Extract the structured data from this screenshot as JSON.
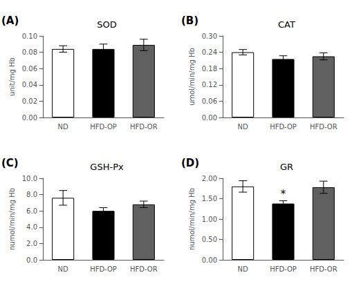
{
  "chart_data": [
    {
      "type": "bar",
      "panel_label": "(A)",
      "title": "SOD",
      "ylabel": "unit/mg Hb",
      "categories": [
        "ND",
        "HFD-OP",
        "HFD-OR"
      ],
      "values": [
        0.084,
        0.084,
        0.089
      ],
      "errors": [
        0.004,
        0.006,
        0.007
      ],
      "colors": [
        "#ffffff",
        "#000000",
        "#606060"
      ],
      "ylim": [
        0,
        0.1
      ],
      "yticks": [
        {
          "value": 0.0,
          "label": "0.00"
        },
        0.02,
        0.04,
        0.06,
        0.08,
        {
          "value": 0.1,
          "label": "0.10"
        }
      ],
      "grid": false
    },
    {
      "type": "bar",
      "panel_label": "(B)",
      "title": "CAT",
      "ylabel": "umol/min/mg Hb",
      "categories": [
        "ND",
        "HFD-OP",
        "HFD-OR"
      ],
      "values": [
        0.24,
        0.215,
        0.225
      ],
      "errors": [
        0.01,
        0.012,
        0.013
      ],
      "colors": [
        "#ffffff",
        "#000000",
        "#606060"
      ],
      "ylim": [
        0,
        0.3
      ],
      "yticks": [
        {
          "value": 0.0,
          "label": "0.00"
        },
        0.06,
        0.12,
        0.18,
        0.24,
        {
          "value": 0.3,
          "label": "0.30"
        }
      ],
      "grid": false
    },
    {
      "type": "bar",
      "panel_label": "(C)",
      "title": "GSH-Px",
      "ylabel": "numol/min/mg Hb",
      "categories": [
        "ND",
        "HFD-OP",
        "HFD-OR"
      ],
      "values": [
        7.6,
        6.0,
        6.8
      ],
      "errors": [
        0.9,
        0.4,
        0.4
      ],
      "colors": [
        "#ffffff",
        "#000000",
        "#606060"
      ],
      "ylim": [
        0,
        10.0
      ],
      "yticks": [
        {
          "value": 0.0,
          "label": "0.0"
        },
        {
          "value": 2.0,
          "label": "2.0"
        },
        {
          "value": 4.0,
          "label": "4.0"
        },
        {
          "value": 6.0,
          "label": "6.0"
        },
        {
          "value": 8.0,
          "label": "8.0"
        },
        {
          "value": 10.0,
          "label": "10.0"
        }
      ],
      "grid": false
    },
    {
      "type": "bar",
      "panel_label": "(D)",
      "title": "GR",
      "ylabel": "numol/min/mg Hb",
      "categories": [
        "ND",
        "HFD-OP",
        "HFD-OR"
      ],
      "values": [
        1.8,
        1.38,
        1.78
      ],
      "errors": [
        0.14,
        0.07,
        0.15
      ],
      "colors": [
        "#ffffff",
        "#000000",
        "#606060"
      ],
      "ylim": [
        0,
        2.0
      ],
      "yticks": [
        {
          "value": 0.0,
          "label": "0.00"
        },
        {
          "value": 0.5,
          "label": "0.50"
        },
        {
          "value": 1.0,
          "label": "1.00"
        },
        {
          "value": 1.5,
          "label": "1.50"
        },
        {
          "value": 2.0,
          "label": "2.00"
        }
      ],
      "annotations": [
        {
          "category": "HFD-OP",
          "text": "*"
        }
      ],
      "grid": false
    }
  ]
}
